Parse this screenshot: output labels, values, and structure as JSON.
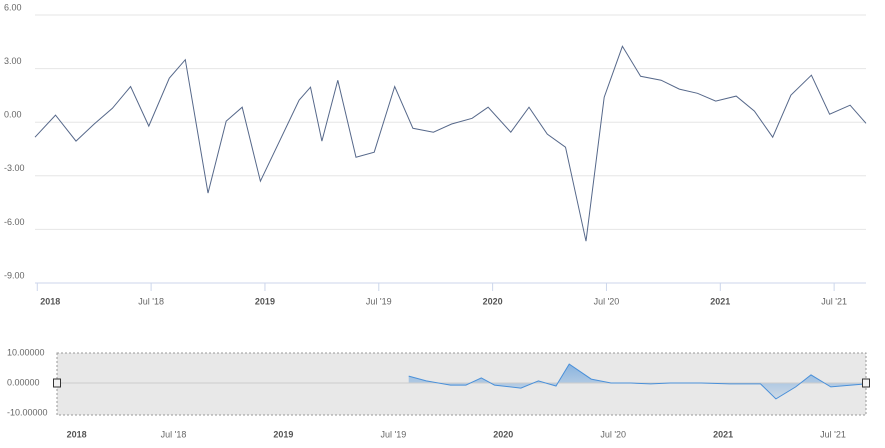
{
  "chart_data": [
    {
      "type": "line",
      "color": "#56688a",
      "grid": true,
      "x": [
        2017.99,
        2018.08,
        2018.17,
        2018.25,
        2018.33,
        2018.41,
        2018.49,
        2018.58,
        2018.65,
        2018.75,
        2018.83,
        2018.9,
        2018.98,
        2019.15,
        2019.2,
        2019.25,
        2019.32,
        2019.4,
        2019.48,
        2019.57,
        2019.65,
        2019.74,
        2019.82,
        2019.91,
        2019.98,
        2020.08,
        2020.16,
        2020.24,
        2020.32,
        2020.41,
        2020.49,
        2020.57,
        2020.65,
        2020.74,
        2020.82,
        2020.9,
        2020.98,
        2021.07,
        2021.15,
        2021.23,
        2021.31,
        2021.4,
        2021.48,
        2021.57,
        2021.64
      ],
      "values": [
        -0.84,
        0.4,
        -1.06,
        -0.1,
        0.78,
        2.0,
        -0.22,
        2.46,
        3.5,
        -3.97,
        0.06,
        0.84,
        -3.3,
        1.23,
        1.96,
        -1.06,
        2.35,
        -1.96,
        -1.68,
        2.0,
        -0.34,
        -0.56,
        -0.1,
        0.22,
        0.84,
        -0.56,
        0.84,
        -0.67,
        -1.4,
        -6.66,
        1.4,
        4.25,
        2.57,
        2.35,
        1.85,
        1.62,
        1.18,
        1.46,
        0.62,
        -0.84,
        1.51,
        2.63,
        0.45,
        0.95,
        -0.06
      ],
      "xlim": [
        2017.99,
        2021.64
      ],
      "ylim": [
        -9,
        6
      ],
      "yticks": [
        {
          "value": 6,
          "label": "6.00"
        },
        {
          "value": 3,
          "label": "3.00"
        },
        {
          "value": 0,
          "label": "0.00"
        },
        {
          "value": -3,
          "label": "-3.00"
        },
        {
          "value": -6,
          "label": "-6.00"
        },
        {
          "value": -9,
          "label": "-9.00"
        }
      ],
      "xticks": [
        {
          "value": 2018,
          "label": "2018"
        },
        {
          "value": 2018.5,
          "label": "Jul '18"
        },
        {
          "value": 2019,
          "label": "2019"
        },
        {
          "value": 2019.5,
          "label": "Jul '19"
        },
        {
          "value": 2020,
          "label": "2020"
        },
        {
          "value": 2020.5,
          "label": "Jul '20"
        },
        {
          "value": 2021,
          "label": "2021"
        },
        {
          "value": 2021.5,
          "label": "Jul '21"
        }
      ]
    },
    {
      "type": "area",
      "color": "#4a90d9",
      "x": [
        2019.57,
        2019.65,
        2019.76,
        2019.83,
        2019.9,
        2019.96,
        2020.08,
        2020.16,
        2020.24,
        2020.3,
        2020.4,
        2020.49,
        2020.58,
        2020.67,
        2020.76,
        2020.9,
        2021.03,
        2021.17,
        2021.24,
        2021.33,
        2021.4,
        2021.49,
        2021.65
      ],
      "values": [
        2.3,
        0.7,
        -0.7,
        -0.7,
        1.7,
        -0.7,
        -1.7,
        0.7,
        -1.0,
        6.3,
        1.3,
        0,
        0,
        -0.3,
        0,
        0,
        -0.3,
        -0.3,
        -5.3,
        -1.3,
        2.7,
        -1.3,
        -0.3
      ],
      "xlim": [
        2017.97,
        2021.65
      ],
      "ylim": [
        -10,
        10
      ],
      "yticks": [
        {
          "value": 10,
          "label": "10.00000"
        },
        {
          "value": 0,
          "label": "0.00000"
        },
        {
          "value": -10,
          "label": "-10.00000"
        }
      ],
      "xticks": [
        {
          "value": 2018,
          "label": "2018"
        },
        {
          "value": 2018.5,
          "label": "Jul '18"
        },
        {
          "value": 2019,
          "label": "2019"
        },
        {
          "value": 2019.5,
          "label": "Jul '19"
        },
        {
          "value": 2020,
          "label": "2020"
        },
        {
          "value": 2020.5,
          "label": "Jul '20"
        },
        {
          "value": 2021,
          "label": "2021"
        },
        {
          "value": 2021.5,
          "label": "Jul '21"
        }
      ]
    }
  ]
}
